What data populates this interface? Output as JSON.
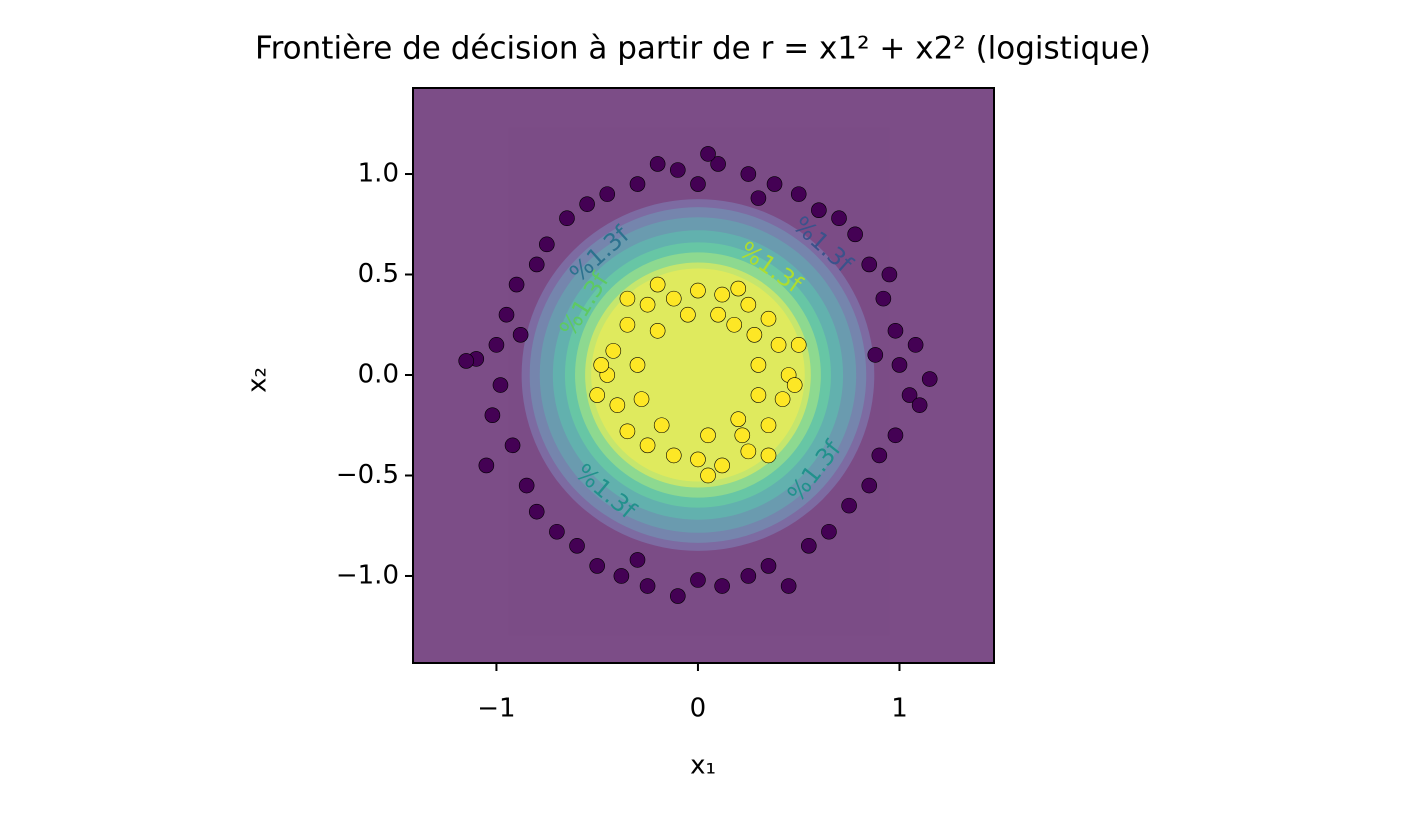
{
  "chart_data": {
    "type": "contour-scatter",
    "title": "Frontière de décision à partir de r = x1² + x2² (logistique)",
    "x_label": "x₁",
    "y_label": "x₂",
    "xlim": [
      -1.414,
      1.469
    ],
    "ylim": [
      -1.433,
      1.428
    ],
    "xticks": [
      {
        "value": -1,
        "label": "−1"
      },
      0,
      1
    ],
    "yticks": [
      {
        "value": -1,
        "label": "−1.0"
      },
      {
        "value": -0.5,
        "label": "−0.5"
      },
      {
        "value": 0,
        "label": "0.0"
      },
      0.5,
      {
        "value": 1,
        "label": "1.0"
      }
    ],
    "contour": {
      "opacity": 0.7,
      "background": "#440154",
      "bands": [
        {
          "radius": 0.875,
          "color": "#472d7b"
        },
        {
          "radius": 0.835,
          "color": "#3b528b"
        },
        {
          "radius": 0.785,
          "color": "#2c728e"
        },
        {
          "radius": 0.72,
          "color": "#21918c"
        },
        {
          "radius": 0.66,
          "color": "#28ae80"
        },
        {
          "radius": 0.61,
          "color": "#5ec962"
        },
        {
          "radius": 0.56,
          "color": "#addc30"
        },
        {
          "radius": 0.53,
          "color": "#d2e21b"
        }
      ],
      "labels": [
        "%1.3f",
        "%1.3f",
        "%1.3f",
        "%1.3f",
        "%1.3f",
        "%1.3f"
      ]
    },
    "series": [
      {
        "color": "#440154",
        "x": [
          1.0,
          1.05,
          0.98,
          1.08,
          0.92,
          0.95,
          0.85,
          0.78,
          0.7,
          0.6,
          0.5,
          0.38,
          0.25,
          0.1,
          0.05,
          -0.1,
          -0.2,
          -0.3,
          -0.45,
          -0.55,
          -0.65,
          -0.75,
          -0.8,
          -0.9,
          -0.95,
          -1.0,
          -1.1,
          -0.98,
          -1.02,
          -0.92,
          -1.05,
          -0.85,
          -0.8,
          -0.7,
          -0.6,
          -0.5,
          -0.38,
          -0.25,
          -0.1,
          0.0,
          0.12,
          0.25,
          0.35,
          0.45,
          0.55,
          0.65,
          0.75,
          0.85,
          0.9,
          0.98,
          1.1,
          1.15,
          -1.15,
          0.0,
          -0.88,
          0.88,
          -0.3,
          0.3
        ],
        "values": [
          0.05,
          -0.1,
          0.22,
          0.15,
          0.38,
          0.5,
          0.55,
          0.7,
          0.78,
          0.82,
          0.9,
          0.95,
          1.0,
          1.05,
          1.1,
          1.02,
          1.05,
          0.95,
          0.9,
          0.85,
          0.78,
          0.65,
          0.55,
          0.45,
          0.3,
          0.15,
          0.08,
          -0.05,
          -0.2,
          -0.35,
          -0.45,
          -0.55,
          -0.68,
          -0.78,
          -0.85,
          -0.95,
          -1.0,
          -1.05,
          -1.1,
          -1.02,
          -1.05,
          -1.0,
          -0.95,
          -1.05,
          -0.85,
          -0.78,
          -0.65,
          -0.55,
          -0.4,
          -0.3,
          -0.15,
          -0.02,
          0.07,
          0.95,
          0.2,
          0.1,
          -0.92,
          0.88
        ]
      },
      {
        "color": "#fde725",
        "x": [
          0.45,
          0.4,
          0.35,
          0.25,
          0.12,
          0.0,
          -0.12,
          -0.25,
          -0.35,
          -0.42,
          -0.45,
          -0.4,
          -0.35,
          -0.25,
          -0.12,
          0.0,
          0.12,
          0.25,
          0.35,
          0.42,
          0.3,
          0.28,
          0.18,
          -0.05,
          -0.2,
          -0.3,
          -0.28,
          -0.18,
          0.05,
          0.2,
          0.3,
          0.48,
          -0.48,
          0.1,
          -0.35,
          0.35,
          0.05,
          -0.2,
          0.2,
          0.5,
          -0.5,
          0.22
        ],
        "values": [
          0.0,
          0.15,
          0.28,
          0.35,
          0.4,
          0.42,
          0.38,
          0.35,
          0.25,
          0.12,
          0.0,
          -0.15,
          -0.28,
          -0.35,
          -0.4,
          -0.42,
          -0.45,
          -0.38,
          -0.25,
          -0.12,
          0.05,
          0.2,
          0.25,
          0.3,
          0.22,
          0.05,
          -0.12,
          -0.25,
          -0.3,
          -0.22,
          -0.1,
          -0.05,
          0.05,
          0.3,
          0.38,
          -0.4,
          -0.5,
          0.45,
          0.43,
          0.15,
          -0.1,
          -0.3
        ]
      }
    ]
  }
}
